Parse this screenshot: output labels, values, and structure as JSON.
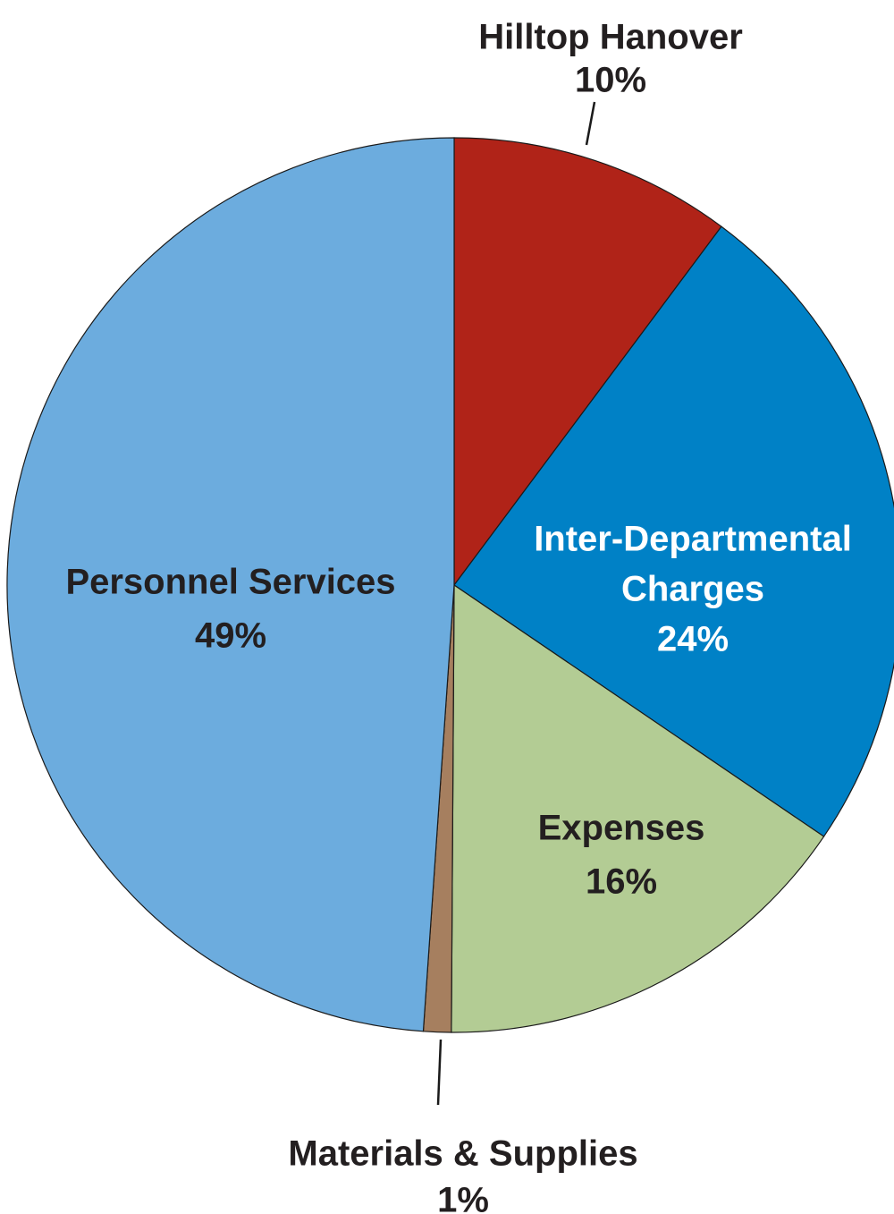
{
  "chart_data": {
    "type": "pie",
    "title": "",
    "start_angle_deg": 0,
    "direction": "clockwise",
    "slices": [
      {
        "label": "Hilltop Hanover",
        "label_lines": [
          "Hilltop Hanover"
        ],
        "percent_text": "10%",
        "value": 10.2,
        "color": "#b02318",
        "text_color": "#231f20",
        "label_placement": "outside"
      },
      {
        "label": "Inter-Departmental Charges",
        "label_lines": [
          "Inter-Departmental",
          "Charges"
        ],
        "percent_text": "24%",
        "value": 24.3,
        "color": "#0081c6",
        "text_color": "#ffffff",
        "label_placement": "inside"
      },
      {
        "label": "Expenses",
        "label_lines": [
          "Expenses"
        ],
        "percent_text": "16%",
        "value": 15.6,
        "color": "#b3cc94",
        "text_color": "#231f20",
        "label_placement": "inside"
      },
      {
        "label": "Materials & Supplies",
        "label_lines": [
          "Materials & Supplies"
        ],
        "percent_text": "1%",
        "value": 1.0,
        "color": "#a67f5f",
        "text_color": "#231f20",
        "label_placement": "outside"
      },
      {
        "label": "Personnel Services",
        "label_lines": [
          "Personnel Services"
        ],
        "percent_text": "49%",
        "value": 48.9,
        "color": "#6cacde",
        "text_color": "#231f20",
        "label_placement": "inside"
      }
    ]
  }
}
